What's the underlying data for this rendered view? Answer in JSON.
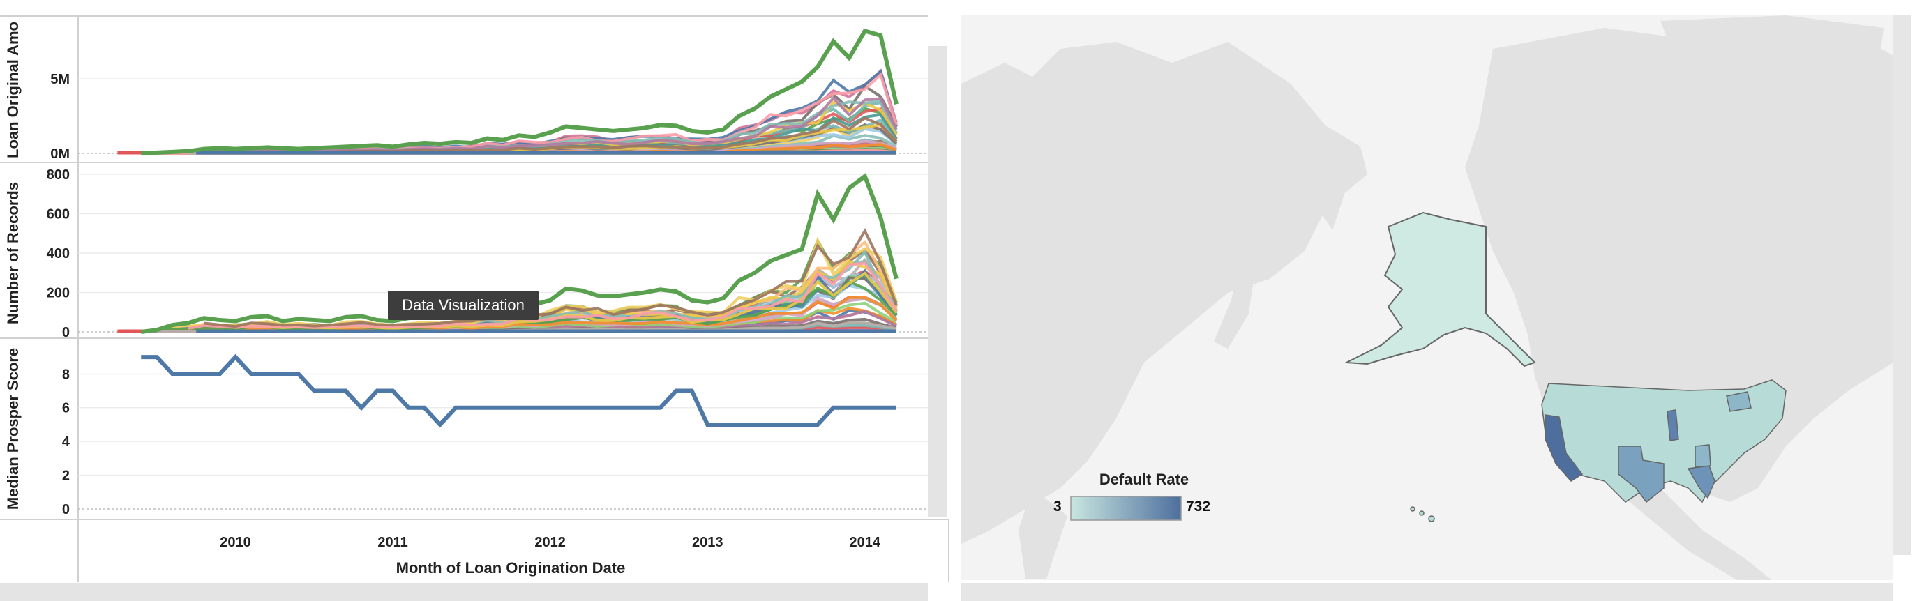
{
  "tooltip": {
    "text": "Data Visualization"
  },
  "chart_data": [
    {
      "type": "line",
      "ylabel": "Loan Original Amo",
      "yticks": [
        {
          "value": 0,
          "label": "0M"
        },
        {
          "value": 5000000,
          "label": "5M"
        }
      ],
      "ylim": [
        0,
        8500000
      ],
      "highlight_series": {
        "name": "",
        "color": "#59a14f",
        "x": [
          2009.4,
          2009.5,
          2009.6,
          2009.7,
          2009.8,
          2009.9,
          2010.0,
          2010.1,
          2010.2,
          2010.3,
          2010.4,
          2010.5,
          2010.6,
          2010.7,
          2010.8,
          2010.9,
          2011.0,
          2011.1,
          2011.2,
          2011.3,
          2011.4,
          2011.5,
          2011.6,
          2011.7,
          2011.8,
          2011.9,
          2012.0,
          2012.1,
          2012.2,
          2012.3,
          2012.4,
          2012.5,
          2012.6,
          2012.7,
          2012.8,
          2012.9,
          2013.0,
          2013.1,
          2013.2,
          2013.3,
          2013.4,
          2013.5,
          2013.6,
          2013.7,
          2013.8,
          2013.9,
          2014.0,
          2014.1,
          2014.2
        ],
        "y": [
          0,
          50000,
          100000,
          150000,
          300000,
          350000,
          300000,
          350000,
          400000,
          350000,
          300000,
          350000,
          400000,
          450000,
          500000,
          550000,
          450000,
          600000,
          700000,
          650000,
          750000,
          700000,
          1000000,
          900000,
          1200000,
          1100000,
          1400000,
          1800000,
          1700000,
          1600000,
          1500000,
          1600000,
          1700000,
          1900000,
          1850000,
          1500000,
          1400000,
          1600000,
          2500000,
          3000000,
          3800000,
          4300000,
          4800000,
          5800000,
          7500000,
          6400000,
          8200000,
          7900000,
          3300000
        ]
      },
      "other_series_count": 50
    },
    {
      "type": "line",
      "ylabel": "Number of Records",
      "yticks": [
        {
          "value": 0,
          "label": "0"
        },
        {
          "value": 200,
          "label": "200"
        },
        {
          "value": 400,
          "label": "400"
        },
        {
          "value": 600,
          "label": "600"
        },
        {
          "value": 800,
          "label": "800"
        }
      ],
      "ylim": [
        0,
        800
      ],
      "highlight_series": {
        "name": "",
        "color": "#59a14f",
        "x": [
          2009.4,
          2009.5,
          2009.6,
          2009.7,
          2009.8,
          2009.9,
          2010.0,
          2010.1,
          2010.2,
          2010.3,
          2010.4,
          2010.5,
          2010.6,
          2010.7,
          2010.8,
          2010.9,
          2011.0,
          2011.1,
          2011.2,
          2011.3,
          2011.4,
          2011.5,
          2011.6,
          2011.7,
          2011.8,
          2011.9,
          2012.0,
          2012.1,
          2012.2,
          2012.3,
          2012.4,
          2012.5,
          2012.6,
          2012.7,
          2012.8,
          2012.9,
          2013.0,
          2013.1,
          2013.2,
          2013.3,
          2013.4,
          2013.5,
          2013.6,
          2013.7,
          2013.8,
          2013.9,
          2014.0,
          2014.1,
          2014.2
        ],
        "y": [
          0,
          10,
          35,
          45,
          70,
          60,
          55,
          75,
          80,
          55,
          65,
          60,
          55,
          75,
          80,
          60,
          55,
          70,
          80,
          75,
          90,
          85,
          110,
          105,
          150,
          140,
          160,
          220,
          210,
          185,
          180,
          190,
          200,
          215,
          205,
          160,
          150,
          170,
          260,
          300,
          360,
          390,
          420,
          700,
          570,
          730,
          790,
          580,
          270
        ]
      },
      "other_series_count": 50
    },
    {
      "type": "line",
      "ylabel": "Median Prosper Score",
      "xlabel": "Month of Loan Origination Date",
      "xticks": [
        "2010",
        "2011",
        "2012",
        "2013",
        "2014"
      ],
      "yticks": [
        {
          "value": 0,
          "label": "0"
        },
        {
          "value": 2,
          "label": "2"
        },
        {
          "value": 4,
          "label": "4"
        },
        {
          "value": 6,
          "label": "6"
        },
        {
          "value": 8,
          "label": "8"
        }
      ],
      "ylim": [
        0,
        9.5
      ],
      "series": [
        {
          "name": "",
          "color": "#4e79a7",
          "x": [
            2009.4,
            2009.5,
            2009.6,
            2009.7,
            2009.8,
            2009.9,
            2010.0,
            2010.1,
            2010.2,
            2010.3,
            2010.4,
            2010.5,
            2010.6,
            2010.7,
            2010.8,
            2010.9,
            2011.0,
            2011.1,
            2011.2,
            2011.3,
            2011.4,
            2011.5,
            2011.6,
            2011.7,
            2011.8,
            2011.9,
            2012.0,
            2012.1,
            2012.2,
            2012.3,
            2012.4,
            2012.5,
            2012.6,
            2012.7,
            2012.8,
            2012.9,
            2013.0,
            2013.1,
            2013.2,
            2013.3,
            2013.4,
            2013.5,
            2013.6,
            2013.7,
            2013.8,
            2013.9,
            2014.0,
            2014.1,
            2014.2
          ],
          "y": [
            9,
            9,
            8,
            8,
            8,
            8,
            9,
            8,
            8,
            8,
            8,
            7,
            7,
            7,
            6,
            7,
            7,
            6,
            6,
            5,
            6,
            6,
            6,
            6,
            6,
            6,
            6,
            6,
            6,
            6,
            6,
            6,
            6,
            6,
            7,
            7,
            5,
            5,
            5,
            5,
            5,
            5,
            5,
            5,
            6,
            6,
            6,
            6,
            6
          ]
        }
      ]
    },
    {
      "type": "heatmap",
      "title": "Default Rate",
      "scale_min": "3",
      "scale_max": "732",
      "colors": {
        "low": "#c8e6e0",
        "high": "#4e6f9e"
      }
    }
  ]
}
